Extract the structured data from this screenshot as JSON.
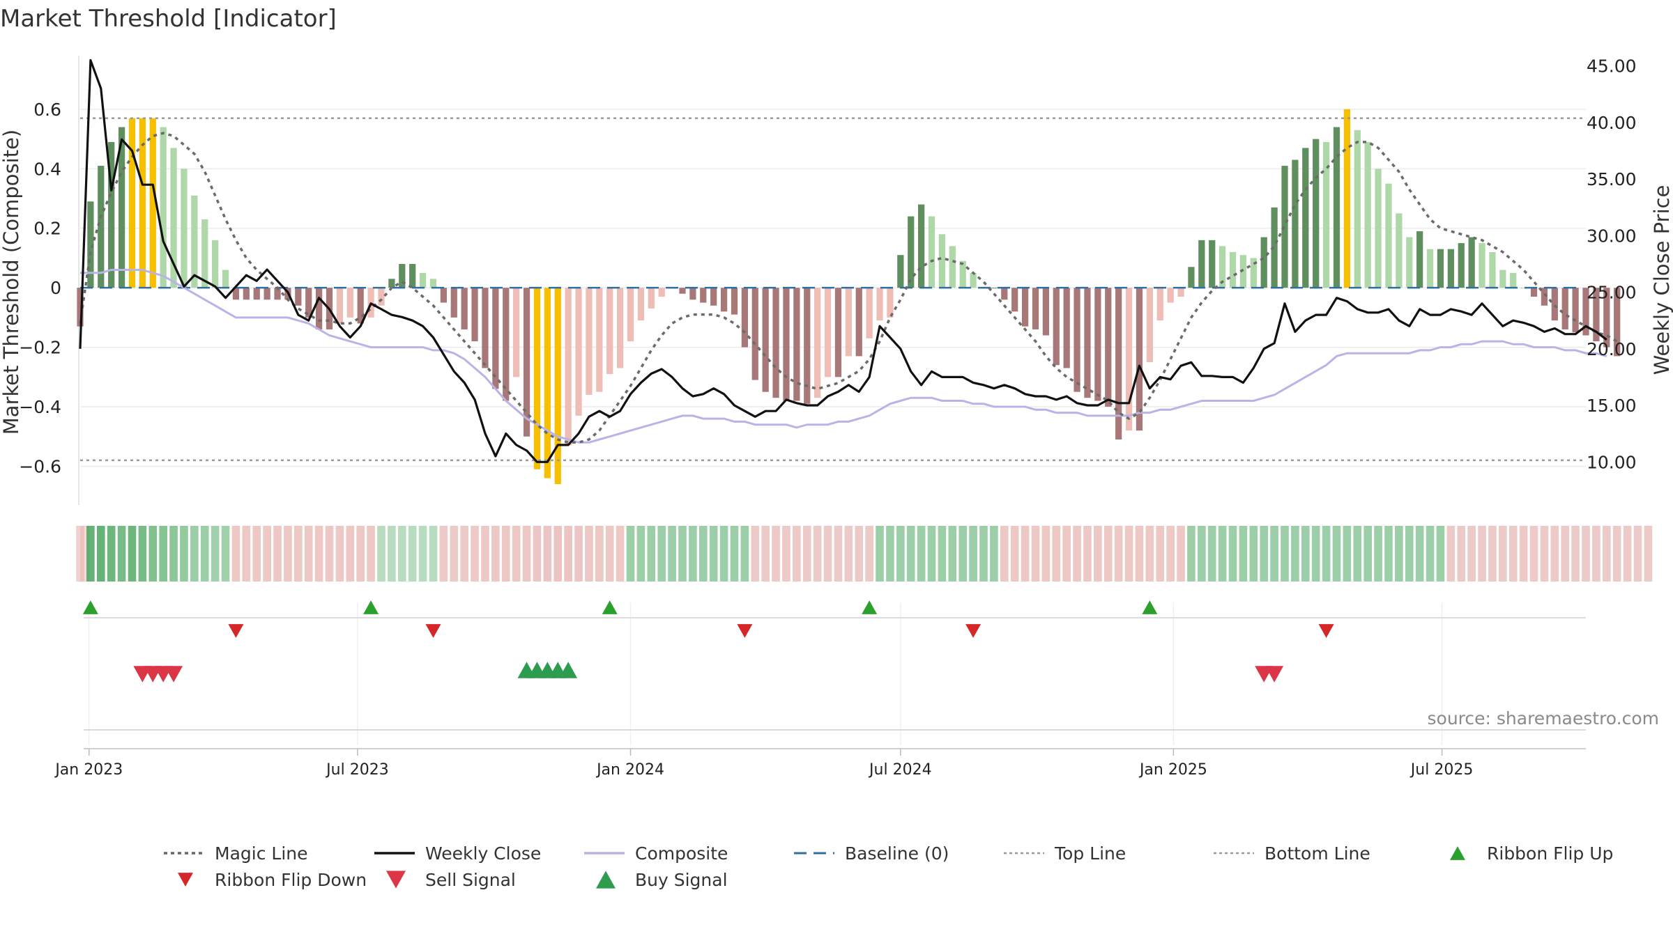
{
  "chart_data": {
    "type": "bar",
    "title": "Market Threshold [Indicator]",
    "ylabel_left": "Market Threshold (Composite)",
    "ylabel_right": "Weekly Close Price",
    "source": "source: sharemaestro.com",
    "ylim_left": [
      -0.73,
      0.78
    ],
    "ylim_right": [
      6.2,
      45.9
    ],
    "yticks_left": [
      {
        "v": 0.6,
        "label": "0.6"
      },
      {
        "v": 0.4,
        "label": "0.4"
      },
      {
        "v": 0.2,
        "label": "0.2"
      },
      {
        "v": 0,
        "label": "0"
      },
      {
        "v": -0.2,
        "label": "−0.2"
      },
      {
        "v": -0.4,
        "label": "−0.4"
      },
      {
        "v": -0.6,
        "label": "−0.6"
      }
    ],
    "yticks_right": [
      {
        "v": 45,
        "label": "45.00"
      },
      {
        "v": 40,
        "label": "40.00"
      },
      {
        "v": 35,
        "label": "35.00"
      },
      {
        "v": 30,
        "label": "30.00"
      },
      {
        "v": 25,
        "label": "25.00"
      },
      {
        "v": 20,
        "label": "20.00"
      },
      {
        "v": 15,
        "label": "15.00"
      },
      {
        "v": 10,
        "label": "10.00"
      }
    ],
    "x_range": [
      "2022-12-26",
      "2025-10-06"
    ],
    "x_ticks": [
      {
        "date": "2023-01-01",
        "label": "Jan 2023"
      },
      {
        "date": "2023-07-01",
        "label": "Jul 2023"
      },
      {
        "date": "2024-01-01",
        "label": "Jan 2024"
      },
      {
        "date": "2024-07-01",
        "label": "Jul 2024"
      },
      {
        "date": "2025-01-01",
        "label": "Jan 2025"
      },
      {
        "date": "2025-07-01",
        "label": "Jul 2025"
      }
    ],
    "first_week": "2022-12-26",
    "week_step_days": 7,
    "top_line": 0.57,
    "bottom_line": -0.58,
    "composite_bars": [
      -0.13,
      0.29,
      0.41,
      0.49,
      0.54,
      0.57,
      0.57,
      0.57,
      0.54,
      0.47,
      0.4,
      0.31,
      0.23,
      0.16,
      0.06,
      -0.04,
      -0.04,
      -0.04,
      -0.04,
      -0.04,
      -0.04,
      -0.06,
      -0.1,
      -0.14,
      -0.14,
      -0.12,
      -0.1,
      -0.12,
      -0.1,
      -0.06,
      0.03,
      0.08,
      0.08,
      0.05,
      0.03,
      -0.05,
      -0.1,
      -0.14,
      -0.18,
      -0.27,
      -0.34,
      -0.38,
      -0.3,
      -0.5,
      -0.61,
      -0.64,
      -0.66,
      -0.53,
      -0.43,
      -0.36,
      -0.35,
      -0.29,
      -0.27,
      -0.18,
      -0.11,
      -0.07,
      -0.03,
      0.0,
      -0.02,
      -0.04,
      -0.05,
      -0.06,
      -0.08,
      -0.09,
      -0.2,
      -0.31,
      -0.35,
      -0.37,
      -0.38,
      -0.38,
      -0.39,
      -0.37,
      -0.3,
      -0.3,
      -0.23,
      -0.23,
      -0.17,
      -0.11,
      -0.1,
      0.11,
      0.24,
      0.28,
      0.24,
      0.18,
      0.14,
      0.09,
      0.05,
      0.0,
      0.0,
      -0.04,
      -0.08,
      -0.13,
      -0.14,
      -0.16,
      -0.26,
      -0.27,
      -0.35,
      -0.37,
      -0.38,
      -0.4,
      -0.51,
      -0.48,
      -0.48,
      -0.25,
      -0.11,
      -0.05,
      -0.03,
      0.07,
      0.16,
      0.16,
      0.14,
      0.12,
      0.11,
      0.1,
      0.17,
      0.27,
      0.41,
      0.43,
      0.47,
      0.5,
      0.49,
      0.54,
      0.6,
      0.53,
      0.49,
      0.4,
      0.35,
      0.25,
      0.17,
      0.19,
      0.13,
      0.13,
      0.13,
      0.15,
      0.17,
      0.15,
      0.12,
      0.06,
      0.05,
      0.0,
      -0.03,
      -0.06,
      -0.11,
      -0.14,
      -0.15,
      -0.16,
      -0.18,
      -0.2,
      -0.23
    ],
    "weekly_close": [
      20.0,
      45.5,
      43.0,
      34.0,
      38.5,
      37.5,
      34.5,
      34.5,
      29.5,
      27.5,
      25.5,
      26.5,
      26.0,
      25.5,
      24.5,
      25.5,
      26.5,
      26.0,
      27.0,
      26.0,
      25.0,
      23.0,
      22.5,
      24.5,
      23.5,
      22.0,
      21.0,
      22.0,
      24.0,
      23.5,
      23.0,
      22.8,
      22.5,
      22.0,
      21.0,
      19.5,
      18.0,
      17.0,
      15.5,
      12.5,
      10.5,
      12.5,
      11.5,
      11.0,
      10.0,
      10.0,
      11.5,
      11.5,
      12.5,
      14.0,
      14.5,
      14.0,
      14.5,
      16.0,
      17.0,
      17.8,
      18.2,
      17.5,
      16.5,
      15.8,
      16.0,
      16.5,
      16.0,
      15.0,
      14.5,
      14.0,
      14.5,
      14.5,
      15.5,
      15.2,
      15.0,
      15.0,
      15.8,
      16.2,
      16.8,
      16.2,
      17.5,
      22.0,
      21.0,
      20.0,
      18.0,
      16.8,
      18.0,
      17.5,
      17.5,
      17.5,
      17.0,
      16.8,
      16.5,
      16.8,
      16.5,
      16.0,
      15.8,
      15.8,
      15.5,
      15.8,
      15.2,
      15.0,
      15.0,
      15.5,
      15.2,
      15.2,
      18.5,
      16.5,
      17.5,
      17.3,
      18.5,
      18.8,
      17.6,
      17.6,
      17.5,
      17.5,
      17.0,
      18.3,
      20.0,
      20.5,
      24.0,
      21.5,
      22.5,
      23.0,
      23.0,
      24.5,
      24.2,
      23.5,
      23.2,
      23.2,
      23.5,
      22.5,
      22.0,
      23.5,
      23.0,
      23.0,
      23.5,
      23.3,
      23.0,
      24.0,
      23.0,
      22.0,
      22.5,
      22.3,
      22.0,
      21.5,
      21.8,
      21.3,
      21.3,
      22.0,
      21.5,
      20.8
    ],
    "composite_line": [
      0.05,
      0.05,
      0.05,
      0.06,
      0.06,
      0.06,
      0.06,
      0.05,
      0.04,
      0.02,
      0.0,
      -0.02,
      -0.04,
      -0.06,
      -0.08,
      -0.1,
      -0.1,
      -0.1,
      -0.1,
      -0.1,
      -0.1,
      -0.11,
      -0.12,
      -0.14,
      -0.16,
      -0.17,
      -0.18,
      -0.19,
      -0.2,
      -0.2,
      -0.2,
      -0.2,
      -0.2,
      -0.2,
      -0.21,
      -0.21,
      -0.22,
      -0.24,
      -0.27,
      -0.3,
      -0.34,
      -0.38,
      -0.41,
      -0.44,
      -0.46,
      -0.48,
      -0.5,
      -0.51,
      -0.52,
      -0.52,
      -0.51,
      -0.5,
      -0.49,
      -0.48,
      -0.47,
      -0.46,
      -0.45,
      -0.44,
      -0.43,
      -0.43,
      -0.44,
      -0.44,
      -0.44,
      -0.45,
      -0.45,
      -0.46,
      -0.46,
      -0.46,
      -0.46,
      -0.47,
      -0.46,
      -0.46,
      -0.46,
      -0.45,
      -0.45,
      -0.44,
      -0.43,
      -0.41,
      -0.39,
      -0.38,
      -0.37,
      -0.37,
      -0.37,
      -0.38,
      -0.38,
      -0.38,
      -0.39,
      -0.39,
      -0.4,
      -0.4,
      -0.4,
      -0.4,
      -0.41,
      -0.41,
      -0.42,
      -0.42,
      -0.42,
      -0.43,
      -0.43,
      -0.43,
      -0.43,
      -0.43,
      -0.42,
      -0.42,
      -0.41,
      -0.41,
      -0.4,
      -0.39,
      -0.38,
      -0.38,
      -0.38,
      -0.38,
      -0.38,
      -0.38,
      -0.37,
      -0.36,
      -0.34,
      -0.32,
      -0.3,
      -0.28,
      -0.26,
      -0.23,
      -0.22,
      -0.22,
      -0.22,
      -0.22,
      -0.22,
      -0.22,
      -0.22,
      -0.21,
      -0.21,
      -0.2,
      -0.2,
      -0.19,
      -0.19,
      -0.18,
      -0.18,
      -0.18,
      -0.19,
      -0.19,
      -0.2,
      -0.2,
      -0.2,
      -0.21,
      -0.21,
      -0.22,
      -0.22,
      -0.23
    ],
    "magic_line": [
      -0.12,
      0.12,
      0.24,
      0.32,
      0.39,
      0.44,
      0.48,
      0.51,
      0.52,
      0.51,
      0.48,
      0.45,
      0.39,
      0.31,
      0.23,
      0.16,
      0.1,
      0.06,
      0.03,
      0.0,
      -0.04,
      -0.07,
      -0.09,
      -0.11,
      -0.11,
      -0.12,
      -0.12,
      -0.1,
      -0.07,
      -0.04,
      0.0,
      0.02,
      0.0,
      -0.03,
      -0.06,
      -0.1,
      -0.14,
      -0.18,
      -0.22,
      -0.26,
      -0.3,
      -0.34,
      -0.38,
      -0.42,
      -0.46,
      -0.49,
      -0.51,
      -0.52,
      -0.52,
      -0.51,
      -0.48,
      -0.43,
      -0.38,
      -0.33,
      -0.27,
      -0.21,
      -0.16,
      -0.12,
      -0.1,
      -0.09,
      -0.09,
      -0.09,
      -0.1,
      -0.12,
      -0.15,
      -0.19,
      -0.23,
      -0.27,
      -0.3,
      -0.32,
      -0.33,
      -0.34,
      -0.33,
      -0.32,
      -0.3,
      -0.28,
      -0.24,
      -0.18,
      -0.1,
      -0.04,
      0.03,
      0.07,
      0.09,
      0.1,
      0.09,
      0.08,
      0.05,
      0.02,
      -0.02,
      -0.06,
      -0.1,
      -0.14,
      -0.18,
      -0.23,
      -0.27,
      -0.3,
      -0.32,
      -0.34,
      -0.36,
      -0.38,
      -0.42,
      -0.44,
      -0.42,
      -0.37,
      -0.31,
      -0.24,
      -0.17,
      -0.1,
      -0.05,
      -0.01,
      0.02,
      0.04,
      0.06,
      0.08,
      0.1,
      0.14,
      0.21,
      0.28,
      0.33,
      0.37,
      0.4,
      0.44,
      0.47,
      0.49,
      0.49,
      0.47,
      0.43,
      0.39,
      0.33,
      0.28,
      0.23,
      0.2,
      0.19,
      0.18,
      0.17,
      0.16,
      0.14,
      0.12,
      0.09,
      0.06,
      0.02,
      -0.02,
      -0.06,
      -0.09,
      -0.11,
      -0.13,
      -0.15,
      -0.16,
      -0.18
    ],
    "ribbon": [
      -0.1,
      0.6,
      0.6,
      0.55,
      0.5,
      0.55,
      0.5,
      0.45,
      0.42,
      0.38,
      0.35,
      0.3,
      0.3,
      0.28,
      0.28,
      -0.28,
      -0.28,
      -0.28,
      -0.28,
      -0.28,
      -0.28,
      -0.28,
      -0.28,
      -0.28,
      -0.28,
      -0.28,
      -0.28,
      -0.28,
      -0.28,
      0.15,
      0.15,
      0.15,
      0.15,
      0.15,
      0.15,
      -0.25,
      -0.25,
      -0.25,
      -0.25,
      -0.28,
      -0.28,
      -0.3,
      -0.3,
      -0.3,
      -0.32,
      -0.32,
      -0.35,
      -0.35,
      -0.32,
      -0.3,
      -0.3,
      -0.28,
      -0.28,
      0.3,
      0.3,
      0.3,
      0.3,
      0.3,
      0.3,
      0.3,
      0.3,
      0.3,
      0.3,
      0.3,
      0.3,
      -0.25,
      -0.25,
      -0.25,
      -0.25,
      -0.25,
      -0.25,
      -0.25,
      -0.25,
      -0.25,
      -0.25,
      -0.25,
      -0.25,
      0.3,
      0.3,
      0.3,
      0.3,
      0.3,
      0.3,
      0.3,
      0.3,
      0.3,
      0.3,
      0.3,
      0.3,
      -0.28,
      -0.28,
      -0.28,
      -0.28,
      -0.28,
      -0.28,
      -0.28,
      -0.28,
      -0.28,
      -0.28,
      -0.28,
      -0.28,
      -0.28,
      -0.28,
      -0.28,
      -0.28,
      -0.28,
      -0.28,
      0.3,
      0.3,
      0.3,
      0.3,
      0.3,
      0.3,
      0.3,
      0.3,
      0.3,
      0.3,
      0.3,
      0.3,
      0.3,
      0.3,
      0.3,
      0.3,
      0.3,
      0.3,
      0.3,
      0.3,
      0.3,
      0.3,
      0.3,
      0.3,
      0.3,
      -0.25,
      -0.25,
      -0.25,
      -0.25,
      -0.25,
      -0.25,
      -0.25,
      -0.25,
      -0.25,
      -0.25,
      -0.25,
      -0.25,
      -0.25,
      -0.25,
      -0.25,
      -0.25,
      -0.25,
      -0.25,
      -0.25,
      -0.25
    ],
    "ribbon_flip_up_dates": [
      "2023-01-02",
      "2023-07-10",
      "2023-12-18",
      "2024-06-10",
      "2024-12-16"
    ],
    "ribbon_flip_down_dates": [
      "2023-04-10",
      "2023-08-21",
      "2024-03-18",
      "2024-08-19",
      "2025-04-14"
    ],
    "sell_signal_dates": [
      "2023-02-06",
      "2023-02-13",
      "2023-02-20",
      "2023-02-27",
      "2025-03-03",
      "2025-03-10"
    ],
    "buy_signal_dates": [
      "2023-10-23",
      "2023-10-30",
      "2023-11-06",
      "2023-11-13",
      "2023-11-20"
    ],
    "legend": [
      {
        "label": "Magic Line",
        "kind": "dotted",
        "color": "#666666"
      },
      {
        "label": "Weekly Close",
        "kind": "solid",
        "color": "#111111"
      },
      {
        "label": "Composite",
        "kind": "solid",
        "color": "#b9b3e6"
      },
      {
        "label": "Baseline (0)",
        "kind": "dashed",
        "color": "#2e6f9e"
      },
      {
        "label": "Top Line",
        "kind": "dotted-light",
        "color": "#999999"
      },
      {
        "label": "Bottom Line",
        "kind": "dotted-light",
        "color": "#999999"
      },
      {
        "label": "Ribbon Flip Up",
        "kind": "up-small",
        "color": "#2ca02c"
      },
      {
        "label": "Ribbon Flip Down",
        "kind": "down-small",
        "color": "#d62728"
      },
      {
        "label": "Sell Signal",
        "kind": "down-big",
        "color": "#dc3545"
      },
      {
        "label": "Buy Signal",
        "kind": "up-big",
        "color": "#2e9c4f"
      }
    ],
    "colors": {
      "pos_strong": "#5f8f5f",
      "pos_weak": "#afd8a8",
      "neg_strong": "#a87878",
      "neg_weak": "#eebdb5",
      "extreme": "#f6c000",
      "ribbon_pos": "#3a9e4f",
      "ribbon_neg": "#e6b3b0"
    }
  }
}
